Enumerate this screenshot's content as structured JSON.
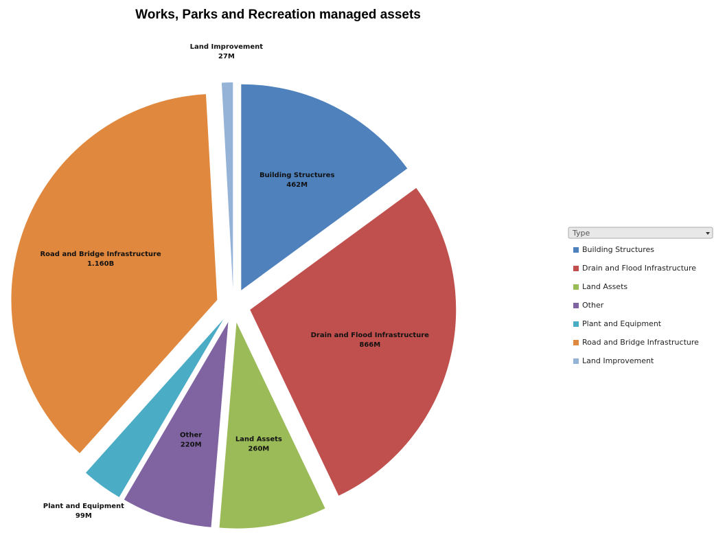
{
  "chart_data": {
    "type": "pie",
    "title": "Works, Parks and Recreation managed assets",
    "legend_title": "Type",
    "categories": [
      "Building Structures",
      "Drain and Flood Infrastructure",
      "Land Assets",
      "Other",
      "Plant and Equipment",
      "Road and Bridge Infrastructure",
      "Land Improvement"
    ],
    "values": [
      462,
      866,
      260,
      220,
      99,
      1160,
      27
    ],
    "value_labels": [
      "462M",
      "866M",
      "260M",
      "220M",
      "99M",
      "1.160B",
      "27M"
    ],
    "colors": [
      "#4f81bd",
      "#c0504d",
      "#9bbb59",
      "#8064a2",
      "#4bacc6",
      "#e0883e",
      "#95b3d7"
    ],
    "legend": "right"
  }
}
